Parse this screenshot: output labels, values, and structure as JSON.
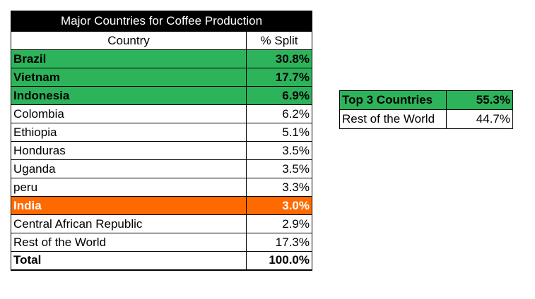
{
  "main_table": {
    "title": "Major Countries for Coffee Production",
    "headers": {
      "country": "Country",
      "split": "% Split"
    },
    "rows": [
      {
        "country": "Brazil",
        "split": "30.8%"
      },
      {
        "country": "Vietnam",
        "split": "17.7%"
      },
      {
        "country": "Indonesia",
        "split": "6.9%"
      },
      {
        "country": "Colombia",
        "split": "6.2%"
      },
      {
        "country": "Ethiopia",
        "split": "5.1%"
      },
      {
        "country": "Honduras",
        "split": "3.5%"
      },
      {
        "country": "Uganda",
        "split": "3.5%"
      },
      {
        "country": "peru",
        "split": "3.3%"
      },
      {
        "country": "India",
        "split": "3.0%"
      },
      {
        "country": "Central African Republic",
        "split": "2.9%"
      },
      {
        "country": "Rest of the World",
        "split": "17.3%"
      }
    ],
    "total": {
      "label": "Total",
      "value": "100.0%"
    }
  },
  "summary_table": {
    "rows": [
      {
        "label": "Top 3 Countries",
        "value": "55.3%"
      },
      {
        "label": "Rest of the World",
        "value": "44.7%"
      }
    ]
  },
  "colors": {
    "highlight_green": "#2db35a",
    "highlight_orange": "#ff6a00",
    "title_background": "#000000"
  }
}
